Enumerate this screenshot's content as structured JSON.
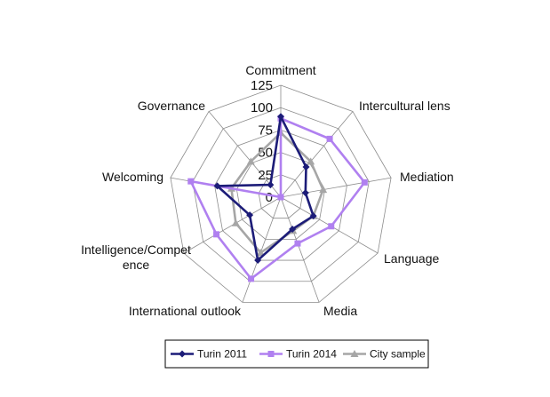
{
  "chart_data": {
    "type": "radar",
    "categories": [
      "Commitment",
      "Intercultural lens",
      "Mediation",
      "Language",
      "Media",
      "International outlook",
      "Intelligence/Competence",
      "Welcoming",
      "Governance"
    ],
    "category_display": [
      "Commitment",
      "Intercultural lens",
      "Mediation",
      "Language",
      "Media",
      "International outlook",
      [
        "Intelligence/Compet",
        "ence"
      ],
      "Welcoming",
      "Governance"
    ],
    "radial_ticks": [
      "0",
      "25",
      "50",
      "75",
      "100",
      "125"
    ],
    "rlim": [
      0,
      125
    ],
    "grid": true,
    "legend_position": "bottom",
    "series": [
      {
        "name": "Turin 2011",
        "color": "#1c1c78",
        "marker": "diamond",
        "values": [
          90,
          44,
          28,
          42,
          38,
          75,
          40,
          72,
          18
        ]
      },
      {
        "name": "Turin 2014",
        "color": "#b080f0",
        "marker": "square",
        "values": [
          88,
          85,
          95,
          65,
          55,
          97,
          83,
          102,
          0
        ]
      },
      {
        "name": "City sample",
        "color": "#a6a6a6",
        "marker": "triangle",
        "values": [
          72,
          52,
          48,
          42,
          40,
          66,
          58,
          56,
          52
        ]
      }
    ]
  }
}
